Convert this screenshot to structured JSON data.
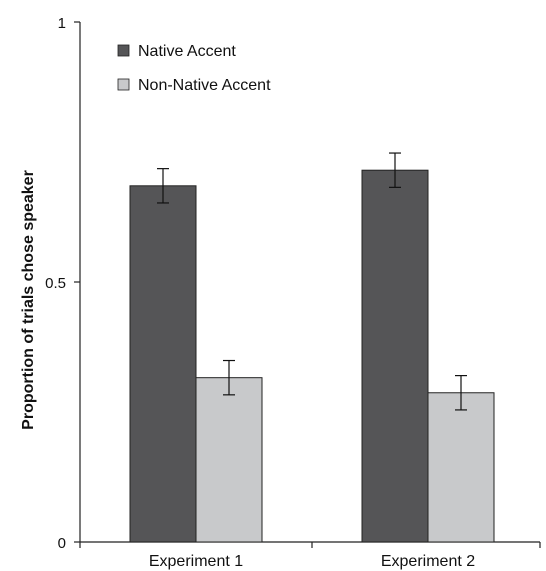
{
  "chart_data": {
    "type": "bar",
    "title": "",
    "xlabel": "",
    "ylabel": "Proportion of trials chose speaker",
    "ylim": [
      0,
      1
    ],
    "y_ticks": [
      0,
      0.5,
      1
    ],
    "y_tick_labels": [
      "0",
      "0.5",
      "1"
    ],
    "categories": [
      "Experiment 1",
      "Experiment 2"
    ],
    "series": [
      {
        "name": "Native Accent",
        "color": "#555557",
        "values": [
          0.685,
          0.715
        ],
        "error": [
          0.033,
          0.033
        ]
      },
      {
        "name": "Non-Native Accent",
        "color": "#c8c9cb",
        "values": [
          0.316,
          0.287
        ],
        "error": [
          0.033,
          0.033
        ]
      }
    ],
    "legend_position": "top-left",
    "grid": false
  }
}
